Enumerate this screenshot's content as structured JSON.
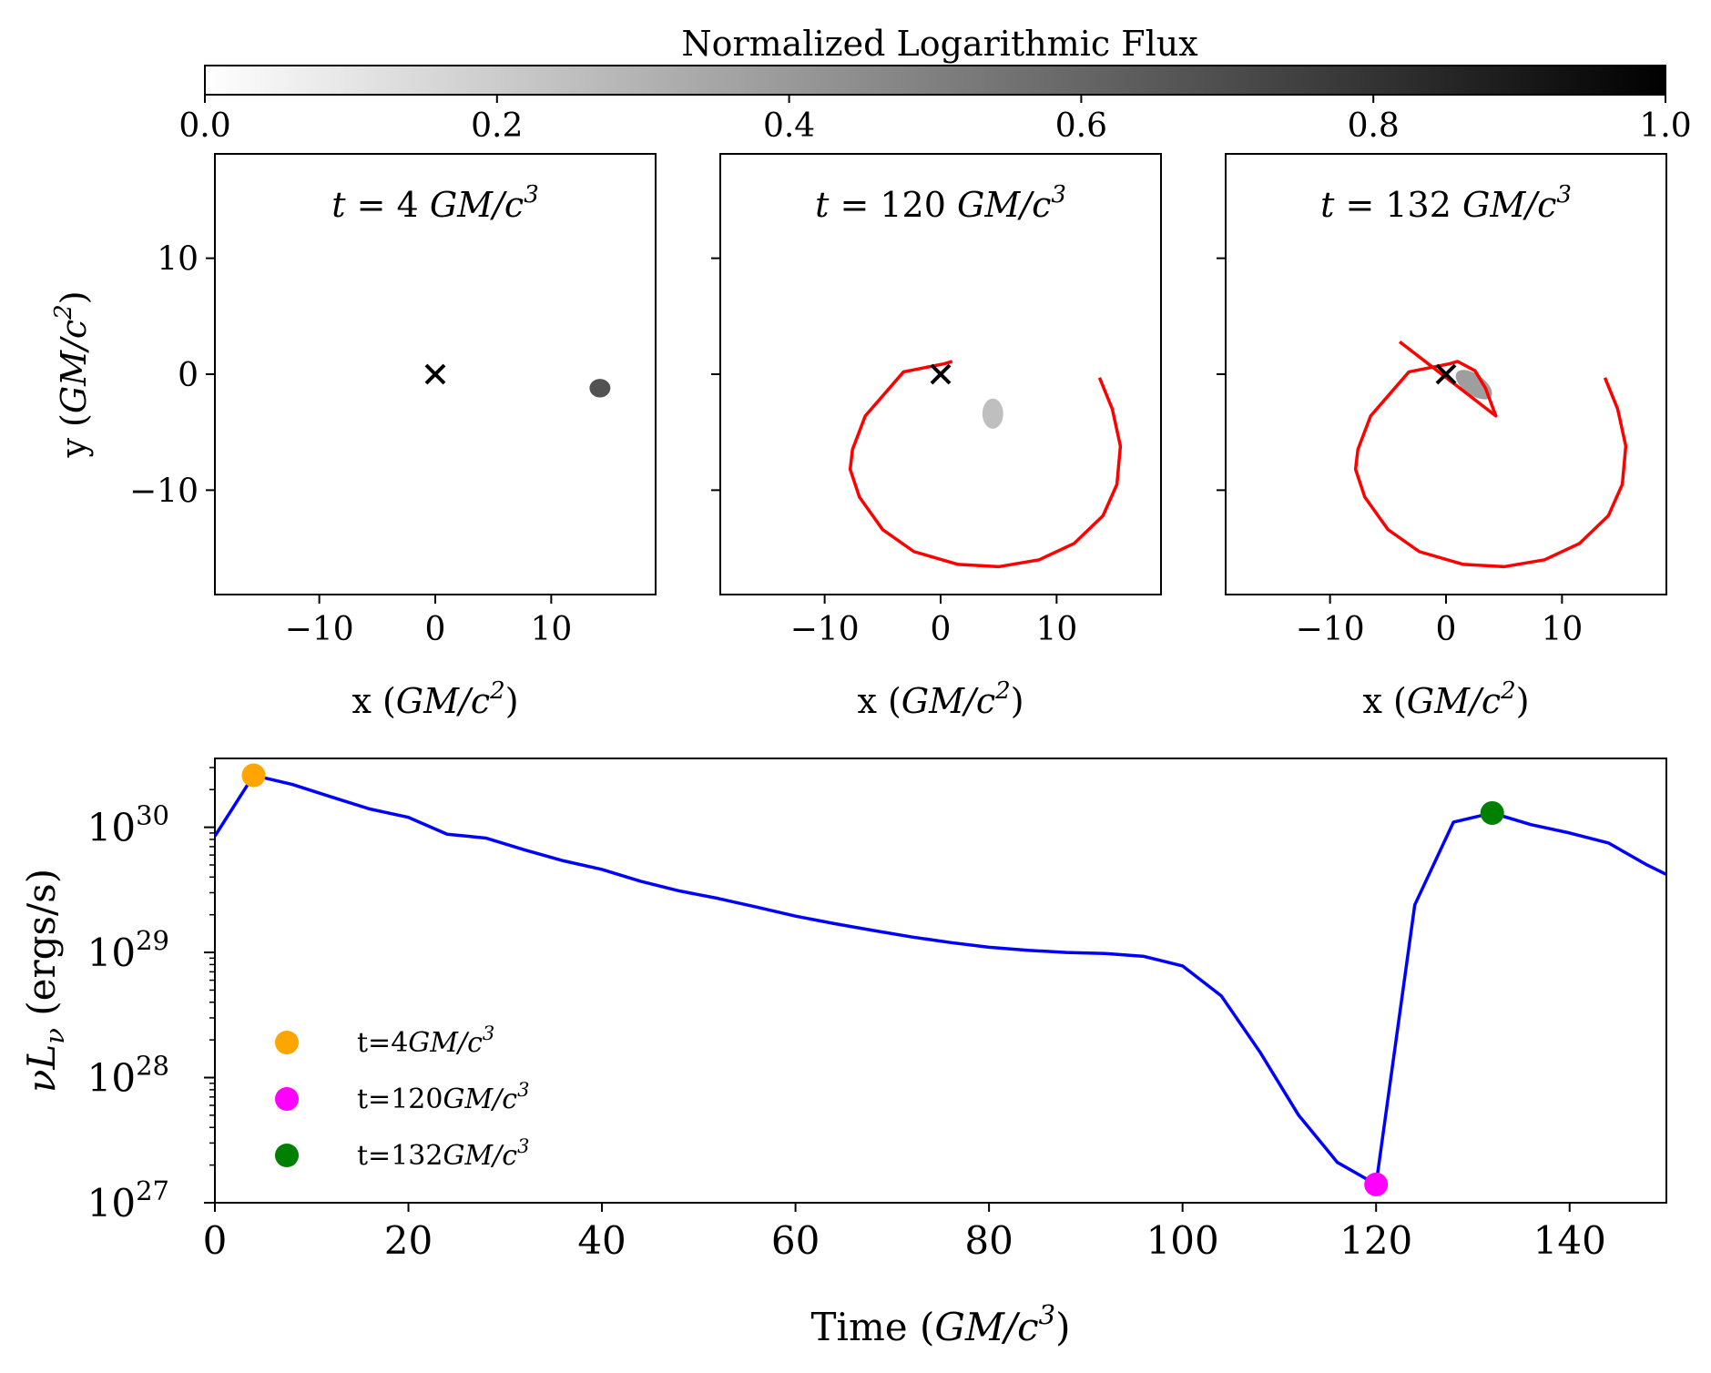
{
  "chart_data": [
    {
      "type": "colorbar",
      "title": "Normalized Logarithmic Flux",
      "range": [
        0.0,
        1.0
      ],
      "ticks": [
        "0.0",
        "0.2",
        "0.4",
        "0.6",
        "0.8",
        "1.0"
      ],
      "cmap": [
        "#ffffff",
        "#000000"
      ]
    },
    {
      "type": "scatter",
      "title_prefix": "t",
      "title_value": "4",
      "title_unit": "GM/c",
      "title_exp": "3",
      "xlim": [
        -19,
        19
      ],
      "ylim": [
        -19,
        19
      ],
      "xticks": [
        -10,
        0,
        10
      ],
      "yticks": [
        10,
        0,
        -10
      ],
      "xtick_labels": [
        "−10",
        "0",
        "10"
      ],
      "ytick_labels": [
        "10",
        "0",
        "−10"
      ],
      "xlabel_prefix": "x (",
      "xlabel_unit": "GM/c",
      "xlabel_exp": "2",
      "xlabel_suffix": ")",
      "ylabel_prefix": "y (",
      "ylabel_unit": "GM/c",
      "ylabel_exp": "2",
      "ylabel_suffix": ")",
      "center_marker": [
        0,
        0
      ],
      "blob": {
        "x": 14.2,
        "y": -1.2,
        "rx": 0.9,
        "ry": 0.8,
        "flux": 0.68
      },
      "orbit": []
    },
    {
      "type": "scatter",
      "title_prefix": "t",
      "title_value": "120",
      "title_unit": "GM/c",
      "title_exp": "3",
      "xlim": [
        -19,
        19
      ],
      "ylim": [
        -19,
        19
      ],
      "xticks": [
        -10,
        0,
        10
      ],
      "xtick_labels": [
        "−10",
        "0",
        "10"
      ],
      "xlabel_prefix": "x (",
      "xlabel_unit": "GM/c",
      "xlabel_exp": "2",
      "xlabel_suffix": ")",
      "center_marker": [
        0,
        0
      ],
      "blob": {
        "x": 4.5,
        "y": -3.4,
        "rx": 0.9,
        "ry": 1.3,
        "flux": 0.25
      },
      "orbit": [
        [
          13.7,
          -0.3
        ],
        [
          14.8,
          -3.0
        ],
        [
          15.5,
          -6.2
        ],
        [
          15.2,
          -9.5
        ],
        [
          14.0,
          -12.2
        ],
        [
          11.5,
          -14.6
        ],
        [
          8.5,
          -16.0
        ],
        [
          5.0,
          -16.6
        ],
        [
          1.5,
          -16.4
        ],
        [
          -2.3,
          -15.3
        ],
        [
          -5.0,
          -13.4
        ],
        [
          -7.0,
          -10.6
        ],
        [
          -7.8,
          -8.2
        ],
        [
          -7.6,
          -6.5
        ],
        [
          -6.5,
          -3.6
        ],
        [
          -3.2,
          0.2
        ],
        [
          0.3,
          0.9
        ],
        [
          1.0,
          1.1
        ]
      ]
    },
    {
      "type": "scatter",
      "title_prefix": "t",
      "title_value": "132",
      "title_unit": "GM/c",
      "title_exp": "3",
      "xlim": [
        -19,
        19
      ],
      "ylim": [
        -19,
        19
      ],
      "xticks": [
        -10,
        0,
        10
      ],
      "xtick_labels": [
        "−10",
        "0",
        "10"
      ],
      "xlabel_prefix": "x (",
      "xlabel_unit": "GM/c",
      "xlabel_exp": "2",
      "xlabel_suffix": ")",
      "center_marker": [
        0,
        0
      ],
      "blob": {
        "x": 2.4,
        "y": -0.9,
        "rx": 1.8,
        "ry": 0.9,
        "flux": 0.38
      },
      "orbit": [
        [
          13.7,
          -0.3
        ],
        [
          14.8,
          -3.0
        ],
        [
          15.5,
          -6.2
        ],
        [
          15.2,
          -9.5
        ],
        [
          14.0,
          -12.2
        ],
        [
          11.5,
          -14.6
        ],
        [
          8.5,
          -16.0
        ],
        [
          5.0,
          -16.6
        ],
        [
          1.5,
          -16.4
        ],
        [
          -2.3,
          -15.3
        ],
        [
          -5.0,
          -13.4
        ],
        [
          -7.0,
          -10.6
        ],
        [
          -7.8,
          -8.2
        ],
        [
          -7.6,
          -6.5
        ],
        [
          -6.5,
          -3.6
        ],
        [
          -3.2,
          0.2
        ],
        [
          0.3,
          0.9
        ],
        [
          1.0,
          1.1
        ],
        [
          2.5,
          0.3
        ],
        [
          3.4,
          -1.2
        ],
        [
          4.3,
          -3.6
        ],
        [
          -4.0,
          2.8
        ]
      ]
    },
    {
      "type": "line",
      "xlabel_prefix": "Time (",
      "xlabel_unit": "GM/c",
      "xlabel_exp": "3",
      "xlabel_suffix": ")",
      "ylabel_text": "νL",
      "ylabel_sub": "ν",
      "ylabel_suffix": " (ergs/s)",
      "xlim": [
        0,
        150
      ],
      "ylim_log10": [
        27,
        30.55
      ],
      "xticks": [
        0,
        20,
        40,
        60,
        80,
        100,
        120,
        140
      ],
      "xtick_labels": [
        "0",
        "20",
        "40",
        "60",
        "80",
        "100",
        "120",
        "140"
      ],
      "ytick_base": "10",
      "ytick_exps": [
        "27",
        "28",
        "29",
        "30"
      ],
      "yscale": "log",
      "line_color": "#0000ff",
      "x": [
        0,
        4,
        8,
        12,
        16,
        20,
        24,
        28,
        32,
        36,
        40,
        44,
        48,
        52,
        56,
        60,
        64,
        68,
        72,
        76,
        80,
        84,
        88,
        92,
        96,
        100,
        104,
        108,
        112,
        116,
        120,
        124,
        128,
        132,
        136,
        140,
        144,
        148,
        150
      ],
      "y": [
        8.5e+29,
        2.6e+30,
        2.2e+30,
        1.75e+30,
        1.4e+30,
        1.2e+30,
        8.8e+29,
        8.2e+29,
        6.6e+29,
        5.4e+29,
        4.6e+29,
        3.7e+29,
        3.1e+29,
        2.7e+29,
        2.3e+29,
        1.95e+29,
        1.7e+29,
        1.5e+29,
        1.33e+29,
        1.2e+29,
        1.1e+29,
        1.04e+29,
        1e+29,
        9.8e+28,
        9.3e+28,
        7.8e+28,
        4.5e+28,
        1.6e+28,
        5e+27,
        2.1e+27,
        1.4e+27,
        2.4e+29,
        1.1e+30,
        1.3e+30,
        1.05e+30,
        9e+29,
        7.5e+29,
        5e+29,
        4.2e+29
      ],
      "markers": [
        {
          "x": 4,
          "y": 2.6e+30,
          "color": "#ffa500",
          "legend_prefix": "t=",
          "legend_value": "4",
          "legend_unit": "GM/c",
          "legend_exp": "3"
        },
        {
          "x": 120,
          "y": 1.4e+27,
          "color": "#ff00ff",
          "legend_prefix": "t=",
          "legend_value": "120",
          "legend_unit": "GM/c",
          "legend_exp": "3"
        },
        {
          "x": 132,
          "y": 1.3e+30,
          "color": "#008000",
          "legend_prefix": "t=",
          "legend_value": "132",
          "legend_unit": "GM/c",
          "legend_exp": "3"
        }
      ],
      "legend_position": "lower-left"
    }
  ],
  "colors": {
    "orbit": "#ff0000",
    "marker": "#000000",
    "axes": "#000000"
  }
}
